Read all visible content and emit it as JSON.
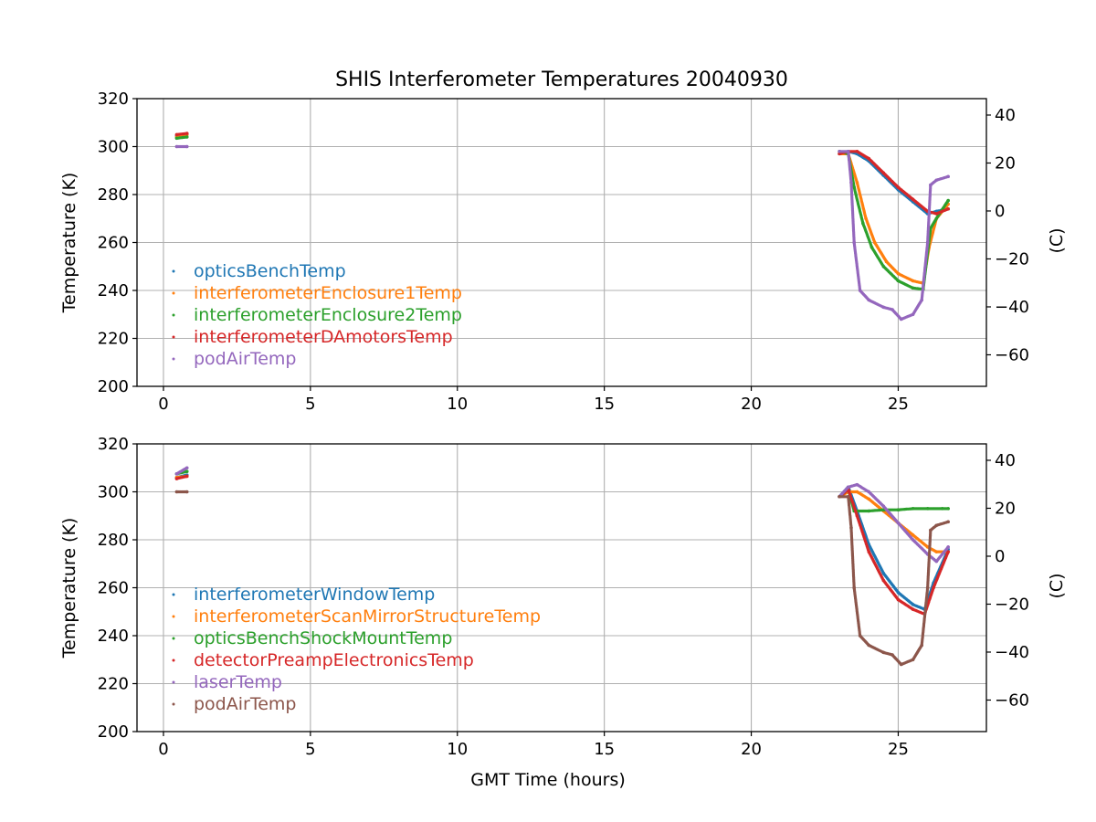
{
  "figure_title": "SHIS Interferometer Temperatures 20040930",
  "chart_data": [
    {
      "type": "scatter",
      "title": "SHIS Interferometer Temperatures 20040930",
      "xlabel": "",
      "ylabel": "Temperature (K)",
      "y2label": "(C)",
      "xlim": [
        -0.9,
        28
      ],
      "ylim": [
        200,
        320
      ],
      "y2lim": [
        -73.15,
        46.85
      ],
      "xticks": [
        0,
        5,
        10,
        15,
        20,
        25
      ],
      "yticks": [
        200,
        220,
        240,
        260,
        280,
        300,
        320
      ],
      "y2ticks": [
        -60,
        -40,
        -20,
        0,
        20,
        40
      ],
      "y2ticklabels": [
        "−60",
        "−40",
        "−20",
        "0",
        "20",
        "40"
      ],
      "grid": true,
      "legend_location": "lower-left",
      "series": [
        {
          "name": "opticsBenchTemp",
          "color": "#1f77b4",
          "x": [
            0.45,
            0.8,
            23.0,
            23.3,
            23.6,
            24.0,
            24.5,
            25.0,
            25.5,
            26.0,
            26.3,
            26.7
          ],
          "y": [
            304.5,
            305,
            297,
            298,
            297,
            294,
            288,
            282,
            277,
            272,
            273,
            274
          ]
        },
        {
          "name": "interferometerEnclosure1Temp",
          "color": "#ff7f0e",
          "x": [
            0.45,
            0.8,
            23.0,
            23.3,
            23.6,
            23.9,
            24.2,
            24.6,
            25.0,
            25.5,
            25.85,
            26.05,
            26.3,
            26.7
          ],
          "y": [
            304,
            305,
            297,
            297,
            285,
            270,
            260,
            252,
            247,
            244,
            243,
            258,
            270,
            276
          ]
        },
        {
          "name": "interferometerEnclosure2Temp",
          "color": "#2ca02c",
          "x": [
            0.45,
            0.8,
            23.0,
            23.3,
            23.5,
            23.8,
            24.1,
            24.5,
            25.0,
            25.5,
            25.85,
            26.1,
            26.4,
            26.7
          ],
          "y": [
            303.5,
            304,
            298,
            297,
            283,
            268,
            258,
            250,
            244,
            241,
            240.5,
            266,
            272,
            277.5
          ]
        },
        {
          "name": "interferometerDAmotorsTemp",
          "color": "#d62728",
          "x": [
            0.45,
            0.8,
            23.0,
            23.3,
            23.6,
            24.0,
            24.5,
            25.0,
            25.5,
            26.0,
            26.3,
            26.7
          ],
          "y": [
            305,
            305.5,
            297,
            298,
            298,
            295,
            289,
            283,
            278,
            273,
            272,
            274
          ]
        },
        {
          "name": "podAirTemp",
          "color": "#9467bd",
          "x": [
            0.45,
            0.8,
            23.0,
            23.3,
            23.4,
            23.5,
            23.7,
            24.0,
            24.5,
            24.8,
            25.1,
            25.5,
            25.8,
            26.0,
            26.1,
            26.3,
            26.7
          ],
          "y": [
            300,
            300,
            298,
            298,
            285,
            260,
            240,
            236,
            233,
            232,
            228,
            230,
            236,
            260,
            284,
            286,
            287.5
          ]
        }
      ]
    },
    {
      "type": "scatter",
      "title": "",
      "xlabel": "GMT Time (hours)",
      "ylabel": "Temperature (K)",
      "y2label": "(C)",
      "xlim": [
        -0.9,
        28
      ],
      "ylim": [
        200,
        320
      ],
      "y2lim": [
        -73.15,
        46.85
      ],
      "xticks": [
        0,
        5,
        10,
        15,
        20,
        25
      ],
      "yticks": [
        200,
        220,
        240,
        260,
        280,
        300,
        320
      ],
      "y2ticks": [
        -60,
        -40,
        -20,
        0,
        20,
        40
      ],
      "y2ticklabels": [
        "−60",
        "−40",
        "−20",
        "0",
        "20",
        "40"
      ],
      "grid": true,
      "legend_location": "lower-left",
      "series": [
        {
          "name": "interferometerWindowTemp",
          "color": "#1f77b4",
          "x": [
            0.45,
            0.8,
            23.0,
            23.3,
            23.6,
            24.0,
            24.5,
            25.0,
            25.5,
            25.9,
            26.2,
            26.7
          ],
          "y": [
            306,
            307,
            298,
            302,
            292,
            278,
            266,
            258,
            253,
            251,
            262,
            276
          ]
        },
        {
          "name": "interferometerScanMirrorStructureTemp",
          "color": "#ff7f0e",
          "x": [
            0.45,
            0.8,
            23.0,
            23.3,
            23.6,
            24.0,
            24.5,
            25.0,
            25.5,
            26.0,
            26.3,
            26.7
          ],
          "y": [
            306,
            306.5,
            298,
            300,
            300,
            297,
            292,
            287,
            282,
            277,
            275,
            275
          ]
        },
        {
          "name": "opticsBenchShockMountTemp",
          "color": "#2ca02c",
          "x": [
            0.45,
            0.8,
            23.0,
            23.3,
            23.5,
            24.0,
            24.5,
            25.0,
            25.5,
            26.0,
            26.5,
            26.7
          ],
          "y": [
            307.5,
            308.5,
            298,
            301,
            292,
            292,
            292.5,
            292.5,
            293,
            293,
            293,
            293
          ]
        },
        {
          "name": "detectorPreampElectronicsTemp",
          "color": "#d62728",
          "x": [
            0.45,
            0.8,
            23.0,
            23.3,
            23.6,
            24.0,
            24.5,
            25.0,
            25.5,
            25.9,
            26.2,
            26.7
          ],
          "y": [
            305.5,
            306.5,
            298,
            301,
            290,
            275,
            263,
            255,
            251,
            249,
            260,
            275
          ]
        },
        {
          "name": "laserTemp",
          "color": "#9467bd",
          "x": [
            0.45,
            0.8,
            23.0,
            23.3,
            23.6,
            24.0,
            24.5,
            25.0,
            25.5,
            26.0,
            26.3,
            26.7
          ],
          "y": [
            307.5,
            310,
            298,
            302,
            303,
            300,
            294,
            287,
            280,
            274,
            271,
            277
          ]
        },
        {
          "name": "podAirTemp",
          "color": "#8c564b",
          "x": [
            0.45,
            0.8,
            23.0,
            23.3,
            23.4,
            23.5,
            23.7,
            24.0,
            24.5,
            24.8,
            25.1,
            25.5,
            25.8,
            26.0,
            26.1,
            26.3,
            26.7
          ],
          "y": [
            300,
            300,
            298,
            298,
            285,
            260,
            240,
            236,
            233,
            232,
            228,
            230,
            236,
            260,
            284,
            286,
            287.5
          ]
        }
      ]
    }
  ]
}
